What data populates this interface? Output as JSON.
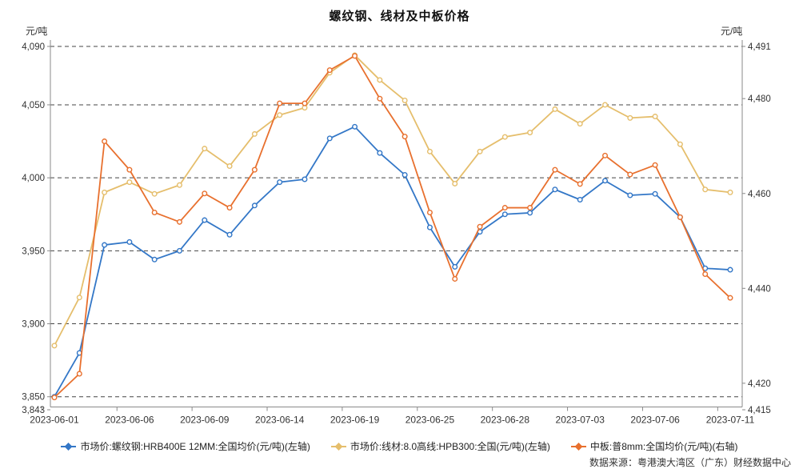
{
  "title": "螺纹钢、线材及中板价格",
  "footer": {
    "source": "数据来源：粤港澳大湾区（广东）财经数据中心"
  },
  "chart_data": {
    "type": "line",
    "x": [
      "2023-06-01",
      "2023-06-02",
      "2023-06-05",
      "2023-06-06",
      "2023-06-07",
      "2023-06-08",
      "2023-06-09",
      "2023-06-12",
      "2023-06-13",
      "2023-06-14",
      "2023-06-15",
      "2023-06-16",
      "2023-06-19",
      "2023-06-20",
      "2023-06-21",
      "2023-06-25",
      "2023-06-26",
      "2023-06-27",
      "2023-06-28",
      "2023-06-29",
      "2023-06-30",
      "2023-07-03",
      "2023-07-04",
      "2023-07-05",
      "2023-07-06",
      "2023-07-07",
      "2023-07-10",
      "2023-07-11"
    ],
    "x_axis_labels": [
      "2023-06-01",
      "2023-06-06",
      "2023-06-09",
      "2023-06-14",
      "2023-06-19",
      "2023-06-25",
      "2023-06-28",
      "2023-07-03",
      "2023-07-06",
      "2023-07-11"
    ],
    "label_every_n": 3,
    "grid": "horizontal-dashed",
    "legend_position": "bottom",
    "series": [
      {
        "name": "市场价:螺纹钢:HRB400E 12MM:全国均价(元/吨)(左轴)",
        "axis": "left",
        "color": "#3377C7",
        "values": [
          3850,
          3880,
          3954,
          3956,
          3944,
          3950,
          3971,
          3961,
          3981,
          3997,
          3999,
          4027,
          4035,
          4017,
          4002,
          3966,
          3939,
          3963,
          3975,
          3976,
          3992,
          3985,
          3998,
          3988,
          3989,
          3973,
          3938,
          3937
        ]
      },
      {
        "name": "市场价:线材:8.0高线:HPB300:全国(元/吨)(左轴)",
        "axis": "left",
        "color": "#E5BE6C",
        "values": [
          3885,
          3918,
          3990,
          3997,
          3989,
          3995,
          4020,
          4008,
          4030,
          4043,
          4048,
          4072,
          4084,
          4067,
          4053,
          4018,
          3996,
          4018,
          4028,
          4031,
          4047,
          4037,
          4050,
          4041,
          4042,
          4023,
          3992,
          3990
        ]
      },
      {
        "name": "中板:普8mm:全国均价(元/吨)(右轴)",
        "axis": "right",
        "color": "#E8702E",
        "values": [
          4417,
          4422,
          4471,
          4465,
          4456,
          4454,
          4460,
          4457,
          4465,
          4479,
          4479,
          4486,
          4489,
          4480,
          4472,
          4456,
          4442,
          4453,
          4457,
          4457,
          4465,
          4462,
          4468,
          4464,
          4466,
          4455,
          4443,
          4438
        ]
      }
    ],
    "left_axis": {
      "unit": "元/吨",
      "min": 3843,
      "max": 4090,
      "tick_values": [
        4090,
        4050,
        4000,
        3950,
        3900,
        3850,
        3843
      ],
      "tick_labels": [
        "4,090",
        "4,050",
        "4,000",
        "3,950",
        "3,900",
        "3,850",
        "3,843"
      ]
    },
    "right_axis": {
      "unit": "元/吨",
      "min": 4415,
      "max": 4491,
      "tick_values": [
        4491,
        4480,
        4460,
        4440,
        4420,
        4415
      ],
      "tick_labels": [
        "4,491",
        "4,480",
        "4,460",
        "4,440",
        "4,420",
        "4,415"
      ]
    }
  }
}
